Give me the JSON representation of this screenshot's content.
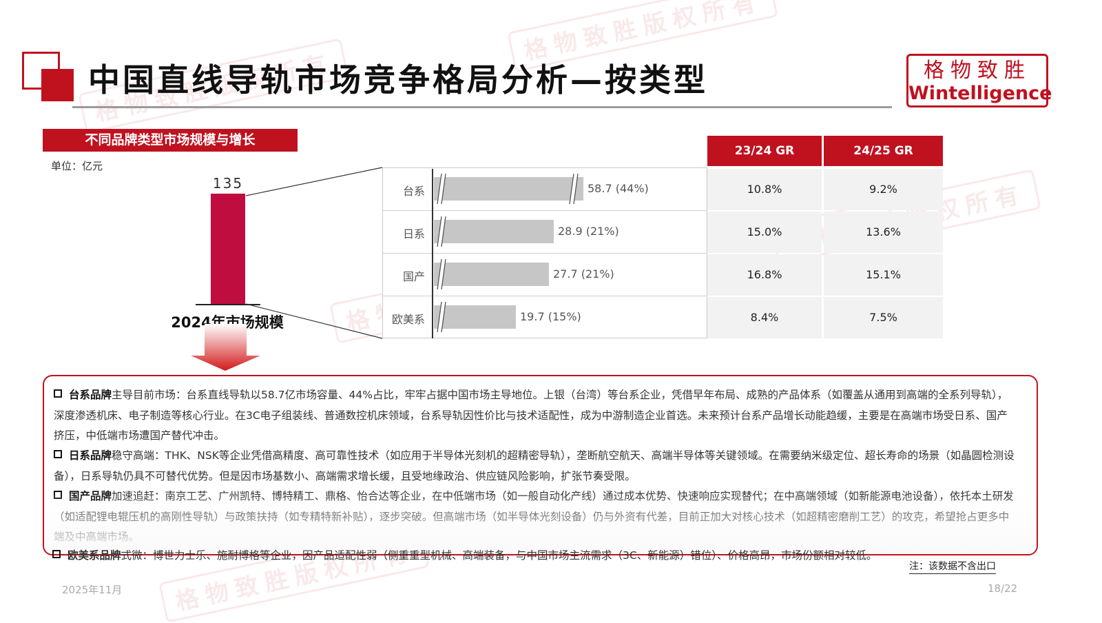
{
  "header": {
    "title": "中国直线导轨市场竞争格局分析—按类型",
    "brand_cn": "格物致胜",
    "brand_en": "Wintelligence"
  },
  "watermark_text": "格物致胜版权所有",
  "section": {
    "label": "不同品牌类型市场规模与增长",
    "unit": "单位：亿元"
  },
  "chart_data": [
    {
      "type": "bar",
      "categories": [
        "2024年市场规模"
      ],
      "values": [
        135
      ],
      "value_labels": [
        "135"
      ],
      "color": "#c00d3f"
    },
    {
      "type": "bar",
      "orientation": "horizontal",
      "axis_break": true,
      "categories": [
        "台系",
        "日系",
        "国产",
        "欧美系"
      ],
      "values": [
        58.7,
        28.9,
        27.7,
        19.7
      ],
      "shares": [
        "44%",
        "21%",
        "21%",
        "15%"
      ],
      "value_labels": [
        "58.7 (44%)",
        "28.9 (21%)",
        "27.7 (21%)",
        "19.7 (15%)"
      ],
      "color": "#c6c6c6"
    },
    {
      "type": "table",
      "columns": [
        "23/24 GR",
        "24/25 GR"
      ],
      "rows": [
        [
          "10.8%",
          "9.2%"
        ],
        [
          "15.0%",
          "13.6%"
        ],
        [
          "16.8%",
          "15.1%"
        ],
        [
          "8.4%",
          "7.5%"
        ]
      ]
    }
  ],
  "bullets": [
    {
      "lead": "台系品牌",
      "text": "主导目前市场：台系直线导轨以58.7亿市场容量、44%占比，牢牢占据中国市场主导地位。上银（台湾）等台系企业，凭借早年布局、成熟的产品体系（如覆盖从通用到高端的全系列导轨），深度渗透机床、电子制造等核心行业。在3C电子组装线、普通数控机床领域，台系导轨因性价比与技术适配性，成为中游制造企业首选。未来预计台系产品增长动能趋缓，主要是在高端市场受日系、国产挤压，中低端市场遭国产替代冲击。"
    },
    {
      "lead": "日系品牌",
      "text": "稳守高端：THK、NSK等企业凭借高精度、高可靠性技术（如应用于半导体光刻机的超精密导轨），垄断航空航天、高端半导体等关键领域。在需要纳米级定位、超长寿命的场景（如晶圆检测设备），日系导轨仍具不可替代优势。但是因市场基数小、高端需求增长缓，且受地缘政治、供应链风险影响，扩张节奏受限。"
    },
    {
      "lead": "国产品牌",
      "text": "加速追赶：南京工艺、广州凯特、博特精工、鼎格、怡合达等企业，在中低端市场（如一般自动化产线）通过成本优势、快速响应实现替代；在中高端领域（如新能源电池设备），依托本土研发（如适配锂电辊压机的高刚性导轨）与政策扶持（如专精特新补贴），逐步突破。但高端市场（如半导体光刻设备）仍与外资有代差，目前正加大对核心技术（如超精密磨削工艺）的攻克，希望抢占更多中端及中高端市场。"
    },
    {
      "lead": "欧美系品牌",
      "text": "式微：博世力士乐、施耐博格等企业，因产品适配性弱（侧重重型机械、高端装备，与中国市场主流需求（3C、新能源）错位）、价格高昂，市场份额相对较低。"
    }
  ],
  "note": "注：该数据不含出口",
  "footer": {
    "date": "2025年11月",
    "page": "18/22"
  },
  "colors": {
    "accent": "#c0111f",
    "main_bar": "#c00d3f",
    "hbar": "#c6c6c6"
  }
}
